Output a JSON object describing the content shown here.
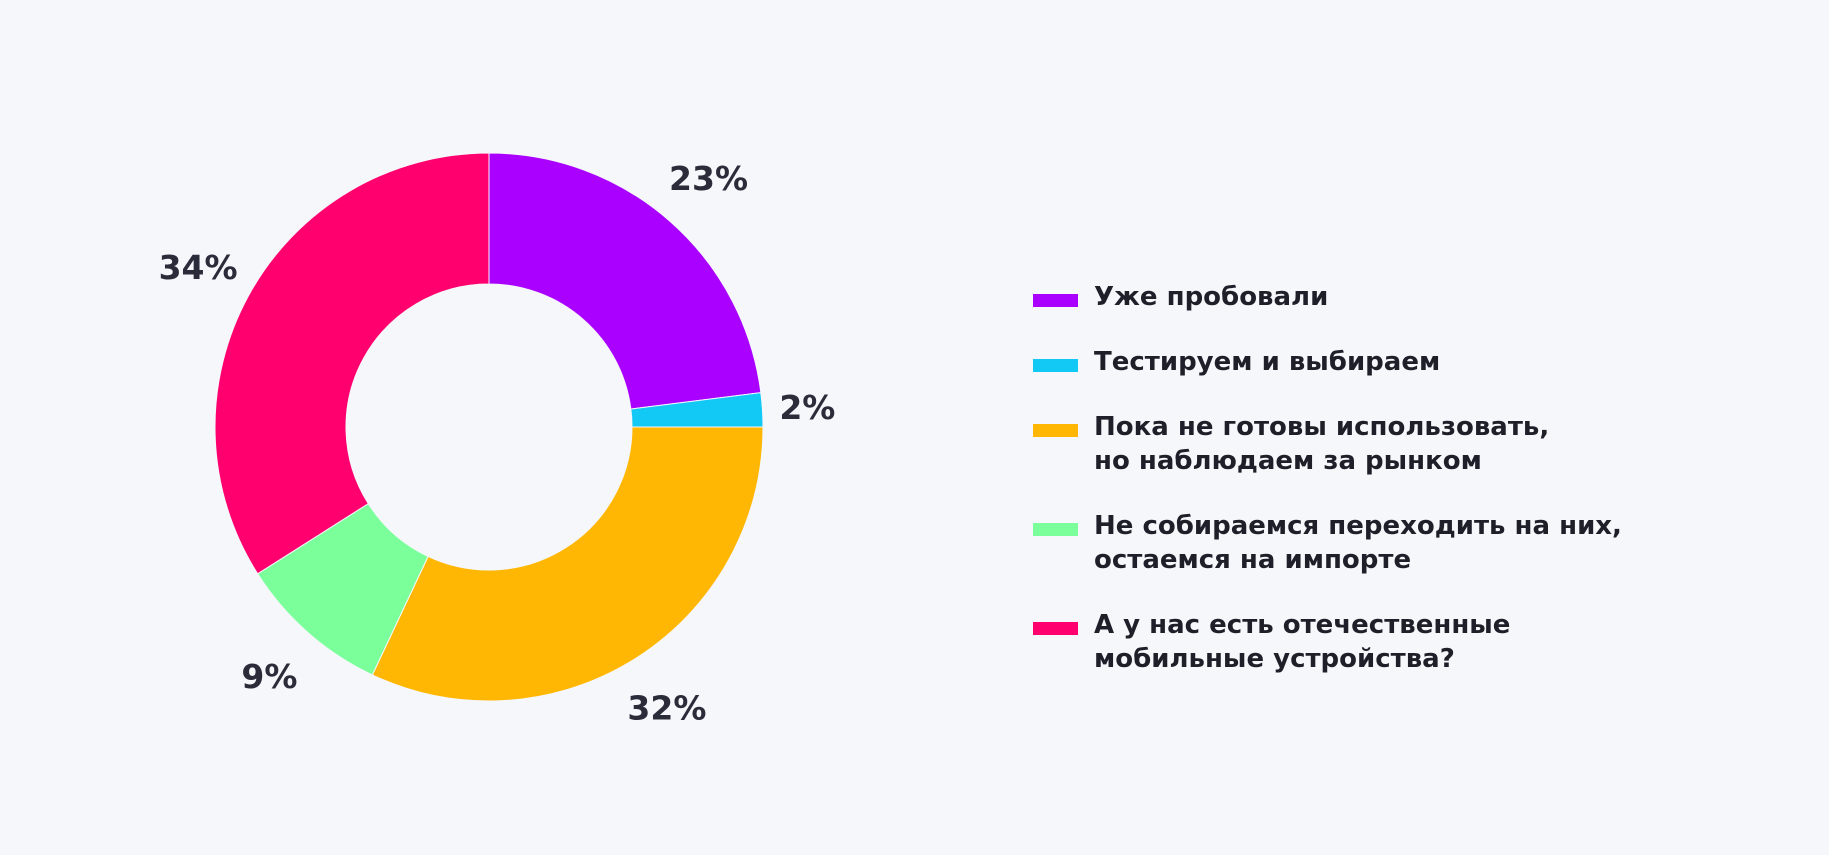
{
  "chart_data": {
    "type": "pie",
    "donut": true,
    "categories": [
      "Уже пробовали",
      "Тестируем и выбираем",
      "Пока не готовы использовать,\nно наблюдаем за рынком",
      "Не собираемся переходить на них,\nостаемся на импорте",
      "А у нас есть отечественные\nмобильные устройства?"
    ],
    "values": [
      23,
      2,
      32,
      9,
      34
    ],
    "labels": [
      "23%",
      "2%",
      "32%",
      "9%",
      "34%"
    ],
    "colors": [
      "#aa00ff",
      "#12c8f5",
      "#ffb703",
      "#7bff9b",
      "#ff006e"
    ],
    "legend_position": "right"
  }
}
